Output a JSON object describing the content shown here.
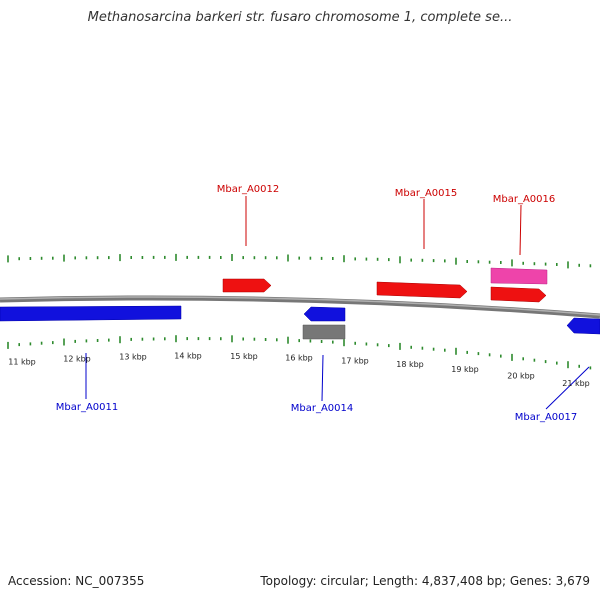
{
  "title": "Methanosarcina barkeri str. fusaro chromosome 1, complete se...",
  "footer": {
    "accession": "Accession: NC_007355",
    "summary": "Topology: circular; Length: 4,837,408 bp; Genes: 3,679"
  },
  "colors": {
    "backbone": "#8a8a8a",
    "ticks": "#2e8b2e",
    "forward_gene": "#ee1111",
    "reverse_gene": "#1111dd",
    "pink_feature": "#ee44aa",
    "gray_feature": "#777777",
    "forward_label": "#cc0000",
    "reverse_label": "#0000cc"
  },
  "scale_labels": [
    "11 kbp",
    "12 kbp",
    "13 kbp",
    "14 kbp",
    "15 kbp",
    "16 kbp",
    "17 kbp",
    "18 kbp",
    "19 kbp",
    "20 kbp",
    "21 kbp"
  ],
  "gene_labels": {
    "forward": [
      "Mbar_A0012",
      "Mbar_A0015",
      "Mbar_A0016"
    ],
    "reverse": [
      "Mbar_A0011",
      "Mbar_A0014",
      "Mbar_A0017"
    ]
  }
}
